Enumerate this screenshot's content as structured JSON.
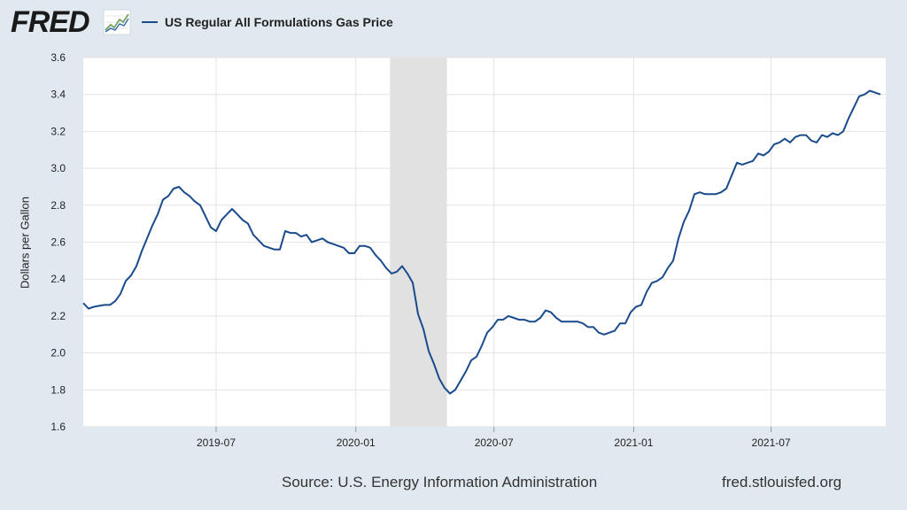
{
  "header": {
    "logo_text": "FRED",
    "logo_icon": "fred-line-chart-icon",
    "legend_color": "#1a4b8c"
  },
  "footer": {
    "source": "Source: U.S. Energy Information Administration",
    "url": "fred.stlouisfed.org"
  },
  "chart_data": {
    "type": "line",
    "title": "",
    "xlabel": "",
    "ylabel": "Dollars per Gallon",
    "ylim": [
      1.6,
      3.6
    ],
    "yticks": [
      "1.6",
      "1.8",
      "2.0",
      "2.2",
      "2.4",
      "2.6",
      "2.8",
      "3.0",
      "3.2",
      "3.4",
      "3.6"
    ],
    "xlim": [
      "2019-01-07",
      "2021-11-29"
    ],
    "xticks": [
      {
        "date": "2019-07-01",
        "label": "2019-07"
      },
      {
        "date": "2020-01-01",
        "label": "2020-01"
      },
      {
        "date": "2020-07-01",
        "label": "2020-07"
      },
      {
        "date": "2021-01-01",
        "label": "2021-01"
      },
      {
        "date": "2021-07-01",
        "label": "2021-07"
      }
    ],
    "recession": [
      "2020-02-15",
      "2020-04-30"
    ],
    "grid": true,
    "legend": "top-left",
    "series": [
      {
        "name": "US Regular All Formulations Gas Price",
        "color": "#1a4b8c",
        "points": [
          [
            "2019-01-07",
            2.27
          ],
          [
            "2019-01-14",
            2.24
          ],
          [
            "2019-01-21",
            2.25
          ],
          [
            "2019-01-28",
            2.255
          ],
          [
            "2019-02-04",
            2.26
          ],
          [
            "2019-02-11",
            2.26
          ],
          [
            "2019-02-18",
            2.28
          ],
          [
            "2019-02-25",
            2.32
          ],
          [
            "2019-03-04",
            2.39
          ],
          [
            "2019-03-11",
            2.42
          ],
          [
            "2019-03-18",
            2.47
          ],
          [
            "2019-03-25",
            2.55
          ],
          [
            "2019-04-01",
            2.62
          ],
          [
            "2019-04-08",
            2.69
          ],
          [
            "2019-04-15",
            2.75
          ],
          [
            "2019-04-22",
            2.83
          ],
          [
            "2019-04-29",
            2.85
          ],
          [
            "2019-05-06",
            2.89
          ],
          [
            "2019-05-13",
            2.9
          ],
          [
            "2019-05-20",
            2.87
          ],
          [
            "2019-05-27",
            2.85
          ],
          [
            "2019-06-03",
            2.82
          ],
          [
            "2019-06-10",
            2.8
          ],
          [
            "2019-06-17",
            2.74
          ],
          [
            "2019-06-24",
            2.68
          ],
          [
            "2019-07-01",
            2.66
          ],
          [
            "2019-07-08",
            2.72
          ],
          [
            "2019-07-15",
            2.75
          ],
          [
            "2019-07-22",
            2.78
          ],
          [
            "2019-07-29",
            2.75
          ],
          [
            "2019-08-05",
            2.72
          ],
          [
            "2019-08-12",
            2.7
          ],
          [
            "2019-08-19",
            2.64
          ],
          [
            "2019-08-26",
            2.61
          ],
          [
            "2019-09-02",
            2.58
          ],
          [
            "2019-09-09",
            2.57
          ],
          [
            "2019-09-16",
            2.56
          ],
          [
            "2019-09-23",
            2.56
          ],
          [
            "2019-09-30",
            2.66
          ],
          [
            "2019-10-07",
            2.65
          ],
          [
            "2019-10-14",
            2.65
          ],
          [
            "2019-10-21",
            2.63
          ],
          [
            "2019-10-28",
            2.64
          ],
          [
            "2019-11-04",
            2.6
          ],
          [
            "2019-11-11",
            2.61
          ],
          [
            "2019-11-18",
            2.62
          ],
          [
            "2019-11-25",
            2.6
          ],
          [
            "2019-12-02",
            2.59
          ],
          [
            "2019-12-09",
            2.58
          ],
          [
            "2019-12-16",
            2.57
          ],
          [
            "2019-12-23",
            2.54
          ],
          [
            "2019-12-30",
            2.54
          ],
          [
            "2020-01-06",
            2.58
          ],
          [
            "2020-01-13",
            2.58
          ],
          [
            "2020-01-20",
            2.57
          ],
          [
            "2020-01-27",
            2.53
          ],
          [
            "2020-02-03",
            2.5
          ],
          [
            "2020-02-10",
            2.46
          ],
          [
            "2020-02-17",
            2.43
          ],
          [
            "2020-02-24",
            2.44
          ],
          [
            "2020-03-02",
            2.47
          ],
          [
            "2020-03-09",
            2.43
          ],
          [
            "2020-03-16",
            2.38
          ],
          [
            "2020-03-23",
            2.21
          ],
          [
            "2020-03-30",
            2.13
          ],
          [
            "2020-04-06",
            2.01
          ],
          [
            "2020-04-13",
            1.94
          ],
          [
            "2020-04-20",
            1.86
          ],
          [
            "2020-04-27",
            1.81
          ],
          [
            "2020-05-04",
            1.78
          ],
          [
            "2020-05-11",
            1.8
          ],
          [
            "2020-05-18",
            1.85
          ],
          [
            "2020-05-25",
            1.9
          ],
          [
            "2020-06-01",
            1.96
          ],
          [
            "2020-06-08",
            1.98
          ],
          [
            "2020-06-15",
            2.04
          ],
          [
            "2020-06-22",
            2.11
          ],
          [
            "2020-06-29",
            2.14
          ],
          [
            "2020-07-06",
            2.18
          ],
          [
            "2020-07-13",
            2.18
          ],
          [
            "2020-07-20",
            2.2
          ],
          [
            "2020-07-27",
            2.19
          ],
          [
            "2020-08-03",
            2.18
          ],
          [
            "2020-08-10",
            2.18
          ],
          [
            "2020-08-17",
            2.17
          ],
          [
            "2020-08-24",
            2.17
          ],
          [
            "2020-08-31",
            2.19
          ],
          [
            "2020-09-07",
            2.23
          ],
          [
            "2020-09-14",
            2.22
          ],
          [
            "2020-09-21",
            2.19
          ],
          [
            "2020-09-28",
            2.17
          ],
          [
            "2020-10-05",
            2.17
          ],
          [
            "2020-10-12",
            2.17
          ],
          [
            "2020-10-19",
            2.17
          ],
          [
            "2020-10-26",
            2.16
          ],
          [
            "2020-11-02",
            2.14
          ],
          [
            "2020-11-09",
            2.14
          ],
          [
            "2020-11-16",
            2.11
          ],
          [
            "2020-11-23",
            2.1
          ],
          [
            "2020-11-30",
            2.11
          ],
          [
            "2020-12-07",
            2.12
          ],
          [
            "2020-12-14",
            2.16
          ],
          [
            "2020-12-21",
            2.16
          ],
          [
            "2020-12-28",
            2.22
          ],
          [
            "2021-01-04",
            2.25
          ],
          [
            "2021-01-11",
            2.26
          ],
          [
            "2021-01-18",
            2.33
          ],
          [
            "2021-01-25",
            2.38
          ],
          [
            "2021-02-01",
            2.39
          ],
          [
            "2021-02-08",
            2.41
          ],
          [
            "2021-02-15",
            2.46
          ],
          [
            "2021-02-22",
            2.5
          ],
          [
            "2021-03-01",
            2.62
          ],
          [
            "2021-03-08",
            2.71
          ],
          [
            "2021-03-15",
            2.77
          ],
          [
            "2021-03-22",
            2.86
          ],
          [
            "2021-03-29",
            2.87
          ],
          [
            "2021-04-05",
            2.86
          ],
          [
            "2021-04-12",
            2.86
          ],
          [
            "2021-04-19",
            2.86
          ],
          [
            "2021-04-26",
            2.87
          ],
          [
            "2021-05-03",
            2.89
          ],
          [
            "2021-05-10",
            2.96
          ],
          [
            "2021-05-17",
            3.03
          ],
          [
            "2021-05-24",
            3.02
          ],
          [
            "2021-05-31",
            3.03
          ],
          [
            "2021-06-07",
            3.04
          ],
          [
            "2021-06-14",
            3.08
          ],
          [
            "2021-06-21",
            3.07
          ],
          [
            "2021-06-28",
            3.09
          ],
          [
            "2021-07-05",
            3.13
          ],
          [
            "2021-07-12",
            3.14
          ],
          [
            "2021-07-19",
            3.16
          ],
          [
            "2021-07-26",
            3.14
          ],
          [
            "2021-08-02",
            3.17
          ],
          [
            "2021-08-09",
            3.18
          ],
          [
            "2021-08-16",
            3.18
          ],
          [
            "2021-08-23",
            3.15
          ],
          [
            "2021-08-30",
            3.14
          ],
          [
            "2021-09-06",
            3.18
          ],
          [
            "2021-09-13",
            3.17
          ],
          [
            "2021-09-20",
            3.19
          ],
          [
            "2021-09-27",
            3.18
          ],
          [
            "2021-10-04",
            3.2
          ],
          [
            "2021-10-11",
            3.27
          ],
          [
            "2021-10-18",
            3.33
          ],
          [
            "2021-10-25",
            3.39
          ],
          [
            "2021-11-01",
            3.4
          ],
          [
            "2021-11-08",
            3.42
          ],
          [
            "2021-11-15",
            3.41
          ],
          [
            "2021-11-22",
            3.4
          ]
        ]
      }
    ]
  }
}
